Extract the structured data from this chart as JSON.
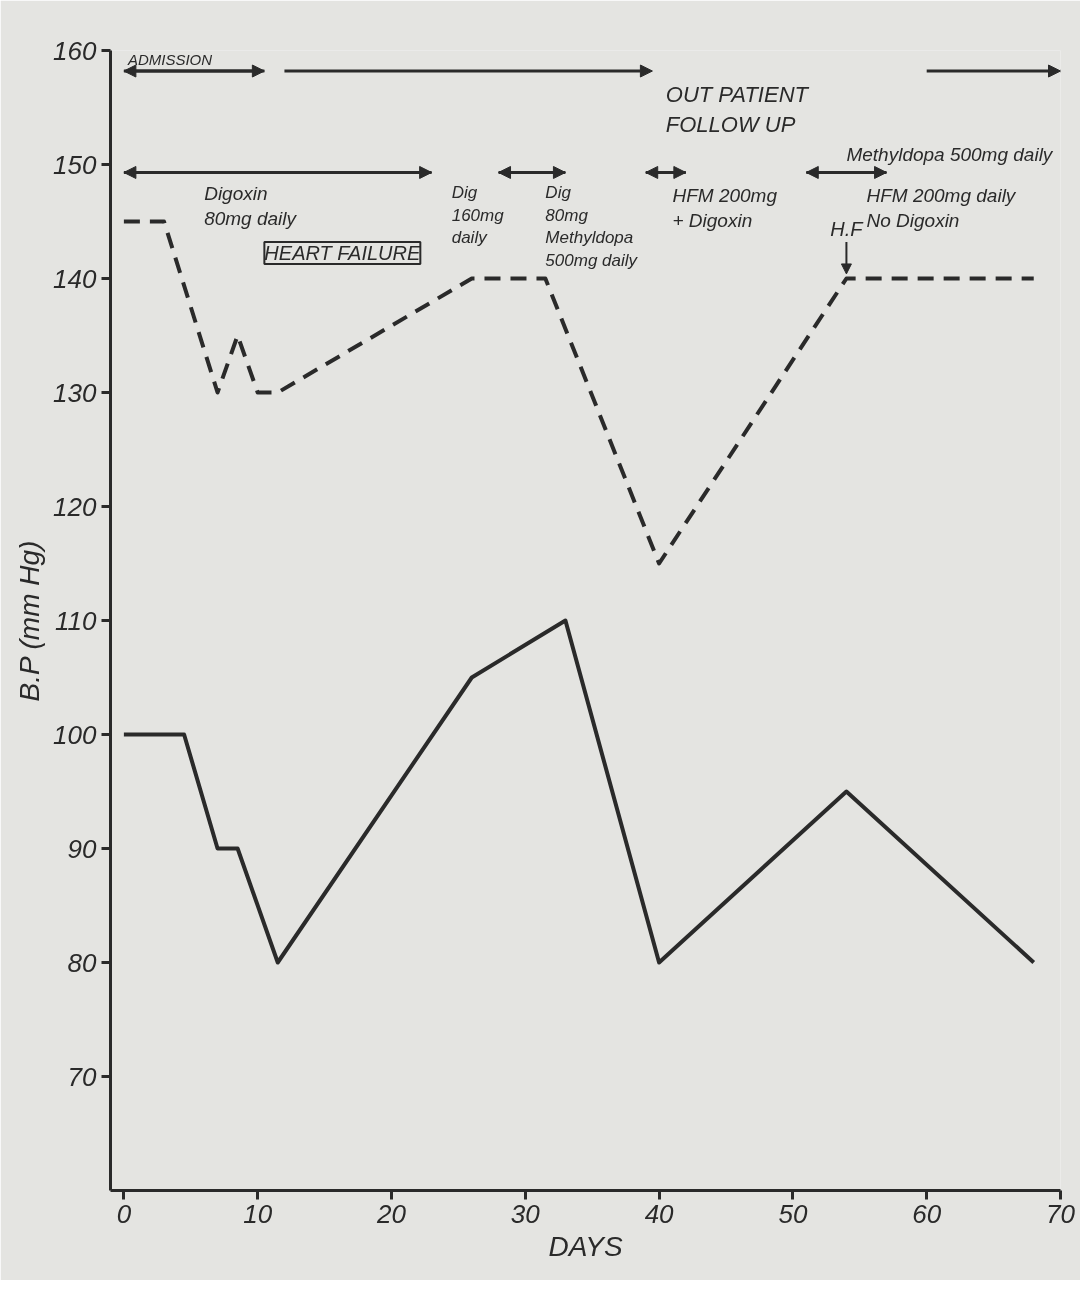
{
  "chart_data": {
    "type": "line",
    "xlabel": "DAYS",
    "ylabel": "B.P (mm Hg)",
    "xlim": [
      -1,
      70
    ],
    "xticks": [
      0,
      10,
      20,
      30,
      40,
      50,
      60,
      70
    ],
    "ylim": [
      60,
      160
    ],
    "yticks": [
      70,
      80,
      90,
      100,
      110,
      120,
      130,
      140,
      150,
      160
    ],
    "grid": false,
    "marker": "none",
    "series": [
      {
        "color": "#2a2a2a",
        "line_style": "dashed",
        "x": [
          0,
          3,
          7,
          8.5,
          10,
          11.5,
          26,
          31.5,
          40,
          54,
          68
        ],
        "values": [
          145,
          145,
          130,
          135,
          130,
          130,
          140,
          140,
          115,
          140,
          140
        ]
      },
      {
        "color": "#2a2a2a",
        "line_style": "solid",
        "x": [
          0,
          4.5,
          7,
          8.5,
          11.5,
          26,
          33,
          40,
          54,
          68
        ],
        "values": [
          100,
          100,
          90,
          90,
          80,
          105,
          110,
          80,
          95,
          80
        ]
      }
    ],
    "annotations": [
      "ADMISSION",
      "OUT PATIENT\nFOLLOW UP",
      "Digoxin\n80mg daily",
      "Dig\n160mg\ndaily",
      "Dig\n80mg\nMethyldopa\n500mg daily",
      "HFM 200mg\n+ Digoxin",
      "Methyldopa 500mg daily",
      "HFM 200mg daily\nNo Digoxin",
      "HEART FAILURE",
      {
        "text": "H.F",
        "x": 54,
        "y": 140
      }
    ]
  }
}
